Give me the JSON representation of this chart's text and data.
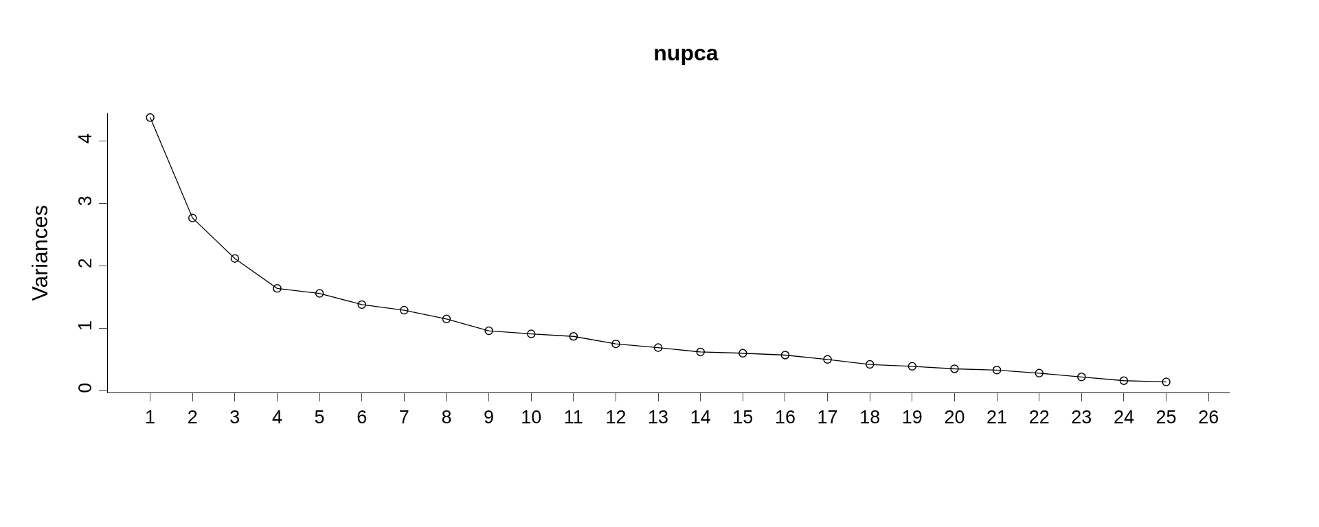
{
  "chart_data": {
    "type": "line",
    "title": "nupca",
    "ylabel": "Variances",
    "x": [
      1,
      2,
      3,
      4,
      5,
      6,
      7,
      8,
      9,
      10,
      11,
      12,
      13,
      14,
      15,
      16,
      17,
      18,
      19,
      20,
      21,
      22,
      23,
      24,
      25
    ],
    "series": [
      {
        "color": "#000000",
        "values": [
          4.38,
          2.77,
          2.12,
          1.64,
          1.56,
          1.38,
          1.29,
          1.15,
          0.96,
          0.91,
          0.87,
          0.75,
          0.69,
          0.62,
          0.6,
          0.57,
          0.5,
          0.42,
          0.39,
          0.35,
          0.33,
          0.28,
          0.22,
          0.16,
          0.14
        ]
      }
    ],
    "xlim": [
      0,
      26.5
    ],
    "xticks": [
      1,
      2,
      3,
      4,
      5,
      6,
      7,
      8,
      9,
      10,
      11,
      12,
      13,
      14,
      15,
      16,
      17,
      18,
      19,
      20,
      21,
      22,
      23,
      24,
      25,
      26
    ],
    "ylim": [
      -0.03,
      4.45
    ],
    "yticks": [
      0,
      1,
      2,
      3,
      4
    ],
    "marker": "circle",
    "line_style": "solid"
  }
}
